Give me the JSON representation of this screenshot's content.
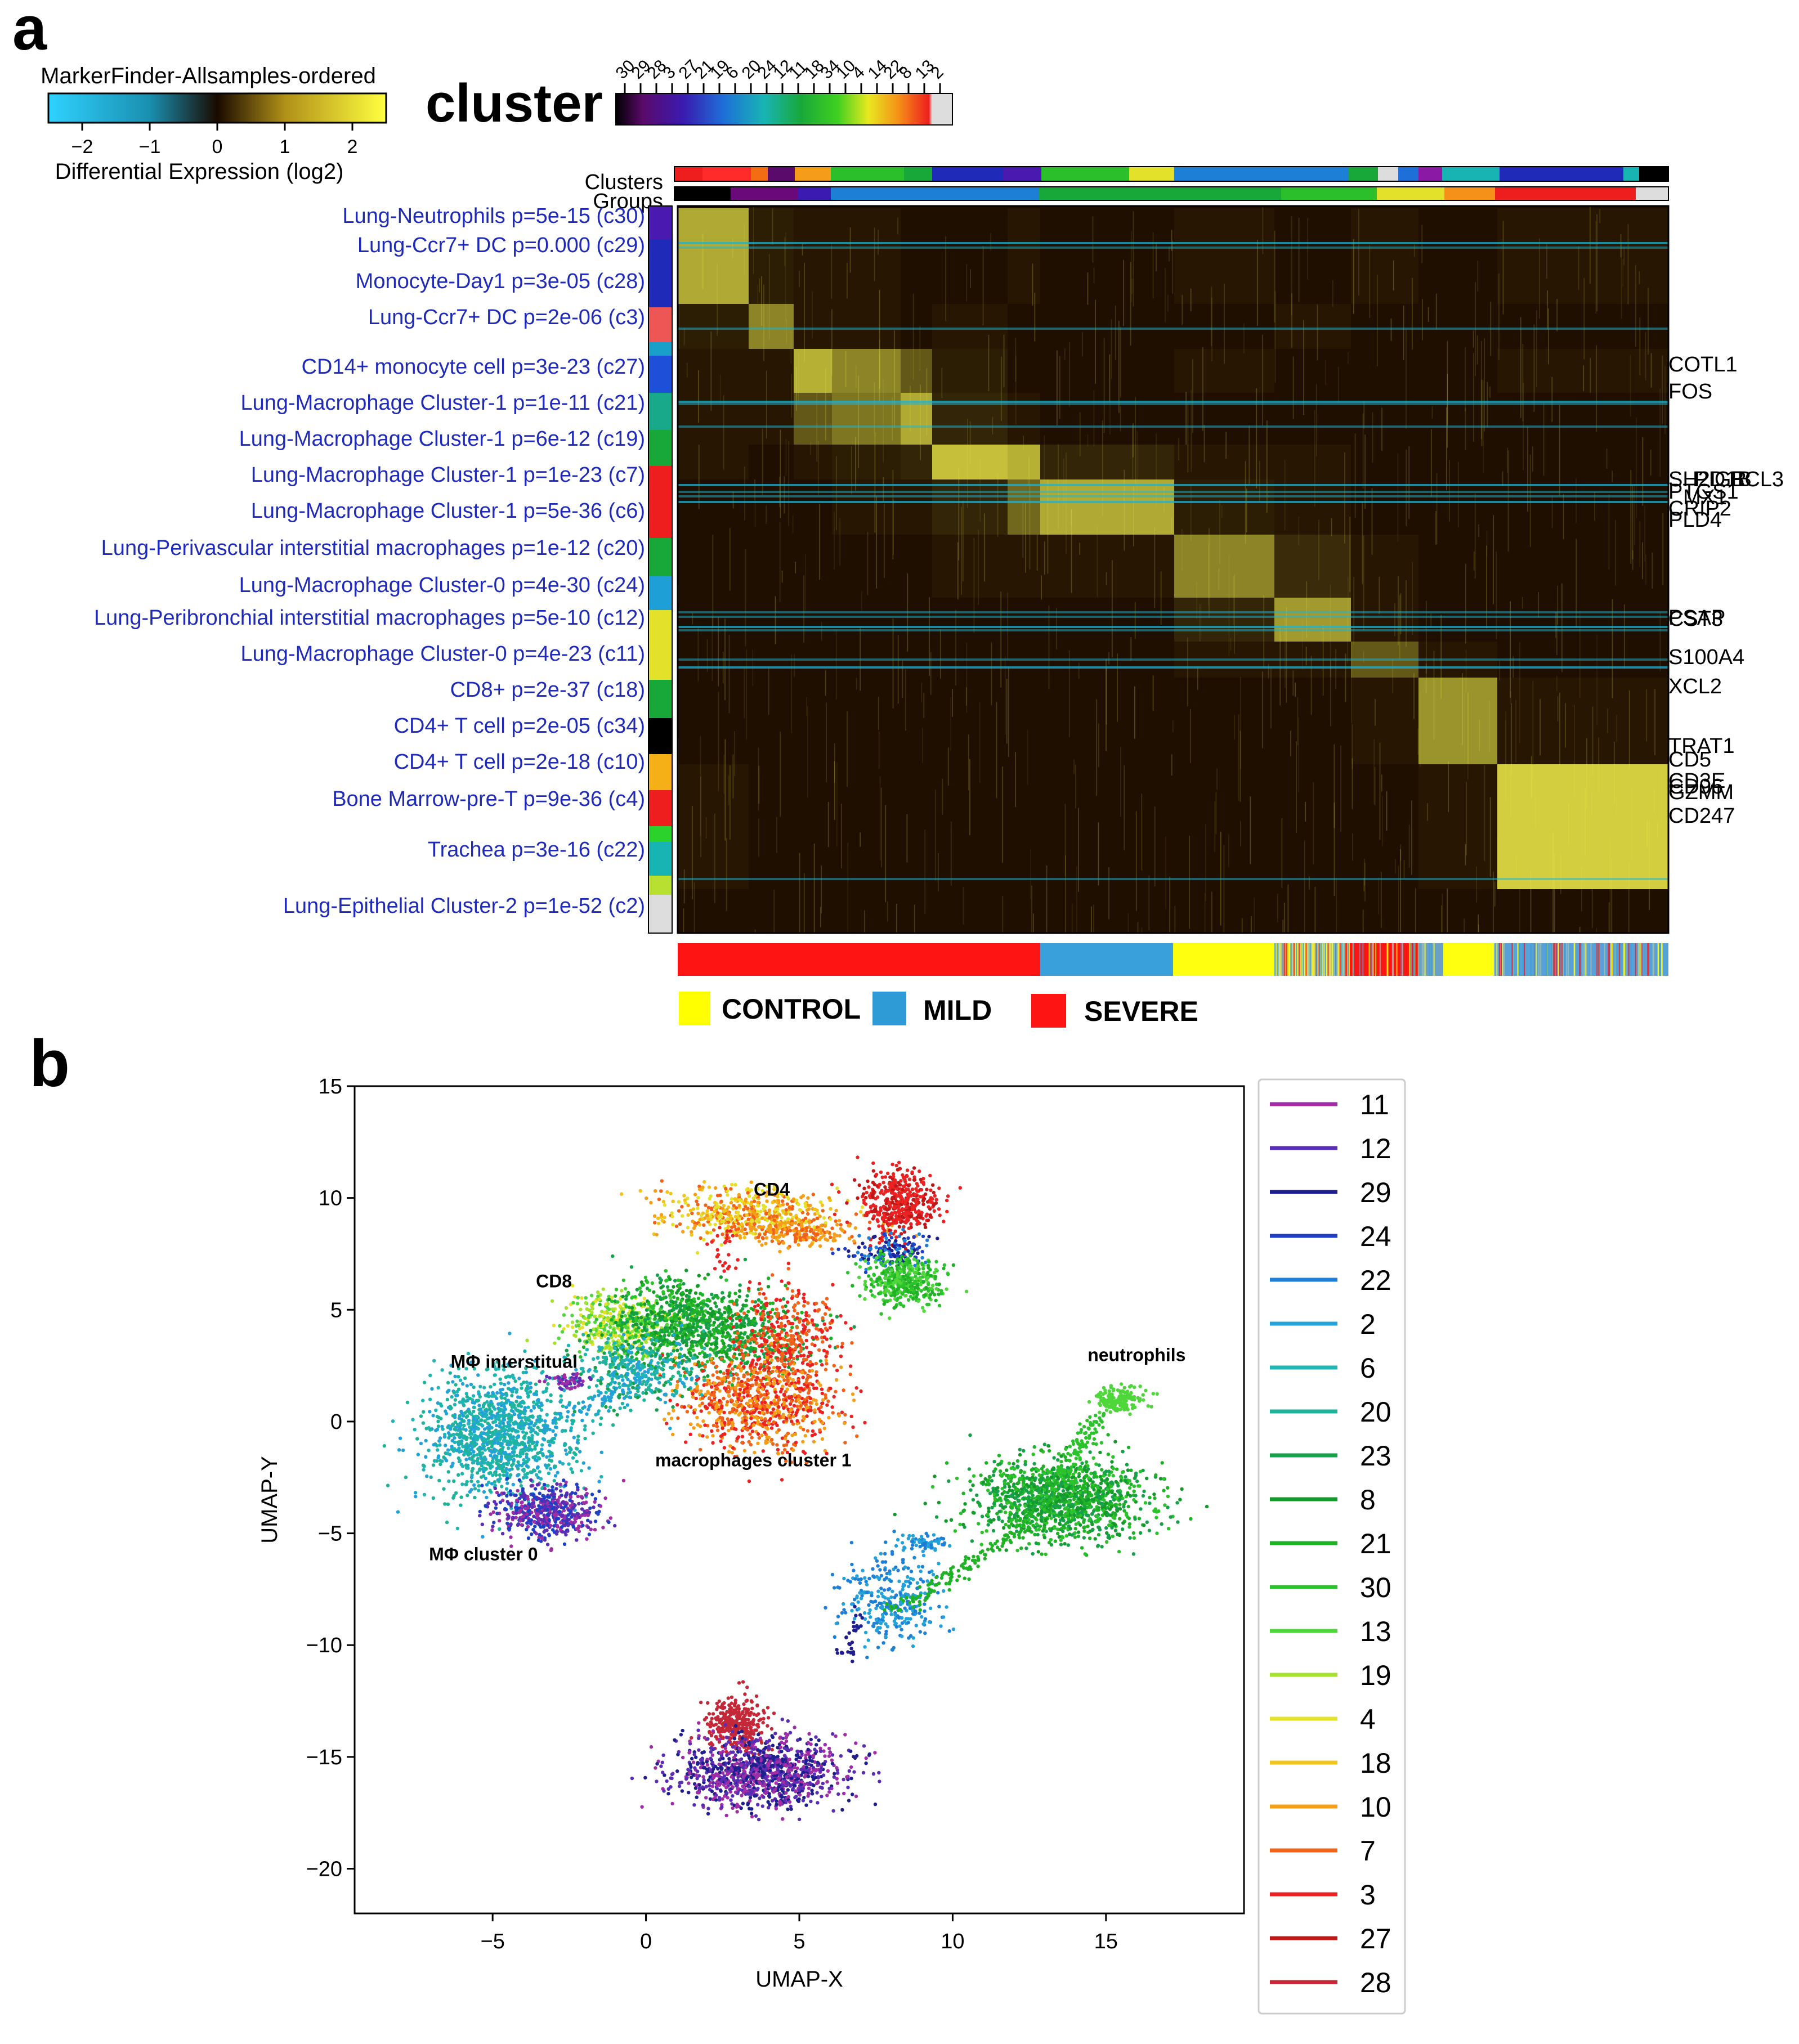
{
  "panel_a_letter": "a",
  "panel_b_letter": "b",
  "colors": {
    "heatmap_bg": "#1f0f00",
    "heatmap_hi": "#f3f04a",
    "heatmap_cyan": "#1bb3d6",
    "row_label": "#1f2bb8",
    "control": "#ffff00",
    "mild": "#2e9ad6",
    "severe": "#ff1414"
  },
  "chart_data": [
    {
      "type": "heatmap",
      "colorbar": {
        "title": "MarkerFinder-Allsamples-ordered",
        "label": "Differential Expression (log2)",
        "ticks": [
          "−2",
          "−1",
          "0",
          "1",
          "2"
        ],
        "range": [
          -2.5,
          2.5
        ]
      },
      "cluster_legend": {
        "title": "cluster",
        "tick_labels": [
          "30",
          "29",
          "28",
          "3",
          "27",
          "21",
          "19",
          "6",
          "20",
          "24",
          "12",
          "11",
          "18",
          "34",
          "10",
          "4",
          "14",
          "22",
          "8",
          "13",
          "2"
        ]
      },
      "track_labels": [
        "Clusters",
        "Groups"
      ],
      "row_labels": [
        "Lung-Neutrophils p=5e-15 (c30)",
        "Lung-Ccr7+ DC p=0.000 (c29)",
        "Monocyte-Day1 p=3e-05 (c28)",
        "Lung-Ccr7+ DC p=2e-06 (c3)",
        "CD14+ monocyte cell p=3e-23 (c27)",
        "Lung-Macrophage Cluster-1 p=1e-11 (c21)",
        "Lung-Macrophage Cluster-1 p=6e-12 (c19)",
        "Lung-Macrophage Cluster-1 p=1e-23 (c7)",
        "Lung-Macrophage Cluster-1 p=5e-36 (c6)",
        "Lung-Perivascular interstitial macrophages p=1e-12 (c20)",
        "Lung-Macrophage Cluster-0 p=4e-30 (c24)",
        "Lung-Peribronchial interstitial macrophages p=5e-10 (c12)",
        "Lung-Macrophage Cluster-0 p=4e-23 (c11)",
        "CD8+ p=2e-37 (c18)",
        "CD4+ T cell p=2e-05 (c34)",
        "CD4+ T cell p=2e-18 (c10)",
        "Bone Marrow-pre-T p=9e-36 (c4)",
        "Trachea p=3e-16 (c22)",
        "Lung-Epithelial Cluster-2 p=1e-52 (c2)"
      ],
      "gene_labels": [
        "COTL1",
        "FOS",
        "SH2D1B",
        "PIGR",
        "BCL3",
        "PTGS1",
        "MX1",
        "CRIP2",
        "PLD4",
        "PSAP",
        "CST3",
        "S100A4",
        "XCL2",
        "TRAT1",
        "CD5",
        "CD3E",
        "CD96",
        "GZMM",
        "CD247"
      ],
      "block_values": [
        [
          2.3,
          0.4,
          0.3,
          0.3,
          0.2,
          0.2,
          0.3,
          0.2,
          0.3,
          0.2,
          0.3,
          0.2,
          0.3
        ],
        [
          0.4,
          1.8,
          0.3,
          0.3,
          0.2,
          0.3,
          0.2,
          0.2,
          0.2,
          0.3,
          0.2,
          0.2,
          0.2
        ],
        [
          0.3,
          0.3,
          2.4,
          1.8,
          1.2,
          0.4,
          0.2,
          0.2,
          0.3,
          0.2,
          0.2,
          0.2,
          0.3
        ],
        [
          0.3,
          0.3,
          1.2,
          1.6,
          2.3,
          0.5,
          0.3,
          0.2,
          0.2,
          0.2,
          0.2,
          0.2,
          0.2
        ],
        [
          0.3,
          0.2,
          0.3,
          0.4,
          0.5,
          2.6,
          2.4,
          0.5,
          0.3,
          0.3,
          0.2,
          0.2,
          0.2
        ],
        [
          0.2,
          0.2,
          0.2,
          0.3,
          0.3,
          0.5,
          1.4,
          2.3,
          0.4,
          0.3,
          0.2,
          0.2,
          0.2
        ],
        [
          0.2,
          0.2,
          0.2,
          0.2,
          0.2,
          0.3,
          0.3,
          0.3,
          1.8,
          0.6,
          0.3,
          0.2,
          0.2
        ],
        [
          0.2,
          0.2,
          0.2,
          0.2,
          0.2,
          0.2,
          0.2,
          0.2,
          0.5,
          2.1,
          0.3,
          0.2,
          0.2
        ],
        [
          0.2,
          0.2,
          0.2,
          0.2,
          0.2,
          0.2,
          0.2,
          0.2,
          0.3,
          0.3,
          1.2,
          0.3,
          0.2
        ],
        [
          0.2,
          0.2,
          0.2,
          0.2,
          0.2,
          0.2,
          0.2,
          0.2,
          0.2,
          0.2,
          0.3,
          2.0,
          0.3
        ],
        [
          0.3,
          0.2,
          0.2,
          0.2,
          0.2,
          0.2,
          0.2,
          0.2,
          0.2,
          0.2,
          0.2,
          0.3,
          2.8
        ]
      ],
      "sample_groups": [
        "CONTROL",
        "MILD",
        "SEVERE"
      ]
    },
    {
      "type": "scatter",
      "xlabel": "UMAP-X",
      "ylabel": "UMAP-Y",
      "xlim": [
        -9.5,
        19.5
      ],
      "ylim": [
        -22,
        15
      ],
      "xticks": [
        -5,
        0,
        5,
        10,
        15
      ],
      "yticks": [
        -20,
        -15,
        -10,
        -5,
        0,
        5,
        10,
        15
      ],
      "annotations": [
        {
          "text": "CD4",
          "x": 4.1,
          "y": 10.1
        },
        {
          "text": "CD8",
          "x": -3.0,
          "y": 6.0
        },
        {
          "text": "MΦ interstitual",
          "x": -4.3,
          "y": 2.4
        },
        {
          "text": "neutrophils",
          "x": 16.0,
          "y": 2.7
        },
        {
          "text": "macrophages cluster 1",
          "x": 3.5,
          "y": -2.0
        },
        {
          "text": "MΦ cluster 0",
          "x": -5.3,
          "y": -6.2
        }
      ],
      "legend": [
        "11",
        "12",
        "29",
        "24",
        "22",
        "2",
        "6",
        "20",
        "23",
        "8",
        "21",
        "30",
        "13",
        "19",
        "4",
        "18",
        "10",
        "7",
        "3",
        "27",
        "28"
      ],
      "series_colors": [
        "#a02ca6",
        "#5a2db5",
        "#1e1e8c",
        "#1f3fc4",
        "#1e7fd6",
        "#23a2d9",
        "#20b5b5",
        "#1fb39a",
        "#17a04a",
        "#139a2a",
        "#1fb225",
        "#2bc22b",
        "#4ed63a",
        "#a6e12e",
        "#e3e12a",
        "#f2c31b",
        "#f59f18",
        "#f2631a",
        "#eb2222",
        "#c21717",
        "#c42838"
      ],
      "clusters": [
        {
          "cx": 3.3,
          "cy": 9.3,
          "sx": 1.4,
          "sy": 0.6,
          "n": 500,
          "colors": [
            16,
            17,
            14,
            15
          ]
        },
        {
          "cx": 5.2,
          "cy": 8.5,
          "sx": 1.0,
          "sy": 0.3,
          "n": 180,
          "colors": [
            16,
            17
          ]
        },
        {
          "cx": 8.2,
          "cy": 9.7,
          "sx": 0.6,
          "sy": 0.7,
          "n": 450,
          "colors": [
            18,
            19,
            18
          ]
        },
        {
          "cx": 7.9,
          "cy": 7.6,
          "sx": 0.7,
          "sy": 0.4,
          "n": 160,
          "colors": [
            2,
            3,
            4
          ]
        },
        {
          "cx": 8.4,
          "cy": 6.3,
          "sx": 0.6,
          "sy": 0.5,
          "n": 420,
          "colors": [
            11,
            12,
            10
          ]
        },
        {
          "cx": -0.9,
          "cy": 4.3,
          "sx": 0.9,
          "sy": 0.7,
          "n": 380,
          "colors": [
            12,
            13,
            14
          ]
        },
        {
          "cx": 1.0,
          "cy": 4.6,
          "sx": 1.0,
          "sy": 0.9,
          "n": 600,
          "colors": [
            10,
            9,
            8,
            11
          ]
        },
        {
          "cx": 3.2,
          "cy": 3.8,
          "sx": 1.1,
          "sy": 0.9,
          "n": 400,
          "colors": [
            8,
            9,
            10
          ]
        },
        {
          "cx": 4.5,
          "cy": 3.6,
          "sx": 0.8,
          "sy": 1.2,
          "n": 400,
          "colors": [
            18,
            17
          ]
        },
        {
          "cx": 3.6,
          "cy": 0.8,
          "sx": 1.3,
          "sy": 1.0,
          "n": 800,
          "colors": [
            17,
            18,
            16
          ]
        },
        {
          "cx": -0.3,
          "cy": 2.2,
          "sx": 1.0,
          "sy": 0.8,
          "n": 400,
          "colors": [
            6,
            7,
            5,
            8
          ]
        },
        {
          "cx": -4.8,
          "cy": -0.6,
          "sx": 1.2,
          "sy": 1.4,
          "n": 1200,
          "colors": [
            6,
            7,
            5
          ]
        },
        {
          "cx": -3.2,
          "cy": -4.0,
          "sx": 0.9,
          "sy": 0.6,
          "n": 500,
          "colors": [
            3,
            0,
            1
          ]
        },
        {
          "cx": -2.5,
          "cy": 1.8,
          "sx": 0.3,
          "sy": 0.2,
          "n": 60,
          "colors": [
            0,
            1
          ]
        },
        {
          "cx": 13.5,
          "cy": -3.5,
          "sx": 1.4,
          "sy": 0.9,
          "n": 1300,
          "colors": [
            11,
            10,
            9,
            8
          ]
        },
        {
          "cx": 15.5,
          "cy": 1.0,
          "sx": 0.4,
          "sy": 0.3,
          "n": 160,
          "colors": [
            12
          ]
        },
        {
          "cx": 8.0,
          "cy": -8.0,
          "sx": 0.8,
          "sy": 1.0,
          "n": 300,
          "colors": [
            5,
            4
          ]
        },
        {
          "cx": 9.0,
          "cy": -5.4,
          "sx": 0.4,
          "sy": 0.2,
          "n": 60,
          "colors": [
            4,
            5
          ]
        },
        {
          "cx": 2.9,
          "cy": -13.6,
          "sx": 0.5,
          "sy": 0.6,
          "n": 350,
          "colors": [
            20
          ]
        },
        {
          "cx": 3.8,
          "cy": -15.7,
          "sx": 1.3,
          "sy": 0.8,
          "n": 1100,
          "colors": [
            1,
            0,
            2
          ]
        }
      ],
      "bridges": [
        {
          "x1": 14.8,
          "y1": 0.3,
          "x2": 13.5,
          "y2": -2.5,
          "n": 90,
          "c": 11
        },
        {
          "x1": 12.5,
          "y1": -4.5,
          "x2": 8.2,
          "y2": -8.5,
          "n": 130,
          "c": 10
        },
        {
          "x1": 7.0,
          "y1": -8.5,
          "x2": 6.5,
          "y2": -10.5,
          "n": 30,
          "c": 2
        },
        {
          "x1": -3.0,
          "y1": 0.0,
          "x2": 0.0,
          "y2": 2.0,
          "n": 50,
          "c": 5
        },
        {
          "x1": 2.5,
          "y1": 8.5,
          "x2": 2.6,
          "y2": 6.8,
          "n": 25,
          "c": 18
        }
      ]
    }
  ]
}
